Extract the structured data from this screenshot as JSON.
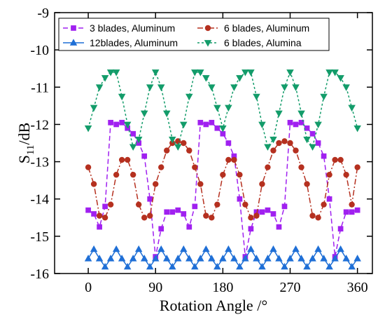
{
  "chart_data": {
    "type": "line",
    "xlabel": "Rotation Angle /°",
    "ylabel_main": "S",
    "ylabel_sub": "11",
    "ylabel_rest": "/dB",
    "xlim": [
      -45,
      380
    ],
    "ylim": [
      -16,
      -9
    ],
    "xticks": [
      0,
      90,
      180,
      270,
      360
    ],
    "yticks": [
      -16,
      -15,
      -14,
      -13,
      -12,
      -11,
      -10,
      -9
    ],
    "grid": false,
    "legend_position": "top",
    "series": [
      {
        "name": "3 blades, Aluminum",
        "color": "#a020f0",
        "marker": "square",
        "dash": "7,4",
        "x": [
          0,
          7.5,
          15,
          22.5,
          30,
          37.5,
          45,
          52.5,
          60,
          67.5,
          75,
          82.5,
          90,
          97.5,
          105,
          112.5,
          120,
          127.5,
          135,
          142.5,
          150,
          157.5,
          165,
          172.5,
          180,
          187.5,
          195,
          202.5,
          210,
          217.5,
          225,
          232.5,
          240,
          247.5,
          255,
          262.5,
          270,
          277.5,
          285,
          292.5,
          300,
          307.5,
          315,
          322.5,
          330,
          337.5,
          345,
          352.5,
          360
        ],
        "y": [
          -14.3,
          -14.4,
          -14.75,
          -14.2,
          -11.95,
          -12.0,
          -11.95,
          -12.1,
          -12.25,
          -12.5,
          -12.85,
          -14.0,
          -15.55,
          -14.8,
          -14.35,
          -14.35,
          -14.3,
          -14.4,
          -14.75,
          -14.2,
          -11.95,
          -12.0,
          -11.95,
          -12.1,
          -12.25,
          -12.5,
          -12.85,
          -14.0,
          -15.55,
          -14.8,
          -14.35,
          -14.35,
          -14.3,
          -14.4,
          -14.75,
          -14.2,
          -11.95,
          -12.0,
          -11.95,
          -12.1,
          -12.25,
          -12.5,
          -12.85,
          -14.0,
          -15.55,
          -14.8,
          -14.35,
          -14.35,
          -14.3
        ]
      },
      {
        "name": "6 blades, Aluminum",
        "color": "#b5301f",
        "marker": "circle",
        "dash": "8,3,2,3",
        "x": [
          0,
          7.5,
          15,
          22.5,
          30,
          37.5,
          45,
          52.5,
          60,
          67.5,
          75,
          82.5,
          90,
          97.5,
          105,
          112.5,
          120,
          127.5,
          135,
          142.5,
          150,
          157.5,
          165,
          172.5,
          180,
          187.5,
          195,
          202.5,
          210,
          217.5,
          225,
          232.5,
          240,
          247.5,
          255,
          262.5,
          270,
          277.5,
          285,
          292.5,
          300,
          307.5,
          315,
          322.5,
          330,
          337.5,
          345,
          352.5,
          360
        ],
        "y": [
          -13.15,
          -13.6,
          -14.45,
          -14.5,
          -14.15,
          -13.35,
          -12.95,
          -12.95,
          -13.35,
          -14.15,
          -14.5,
          -14.45,
          -13.6,
          -13.15,
          -12.7,
          -12.5,
          -12.45,
          -12.5,
          -12.7,
          -13.15,
          -13.6,
          -14.45,
          -14.5,
          -14.15,
          -13.35,
          -12.95,
          -12.95,
          -13.35,
          -14.15,
          -14.5,
          -14.45,
          -13.6,
          -13.15,
          -12.7,
          -12.5,
          -12.45,
          -12.5,
          -12.7,
          -13.15,
          -13.6,
          -14.45,
          -14.5,
          -14.15,
          -13.35,
          -12.95,
          -12.95,
          -13.35,
          -14.15,
          -13.15
        ]
      },
      {
        "name": "12blades, Aluminum",
        "color": "#1f6fd6",
        "marker": "triangle-up",
        "dash": "",
        "x": [
          0,
          7.5,
          15,
          22.5,
          30,
          37.5,
          45,
          52.5,
          60,
          67.5,
          75,
          82.5,
          90,
          97.5,
          105,
          112.5,
          120,
          127.5,
          135,
          142.5,
          150,
          157.5,
          165,
          172.5,
          180,
          187.5,
          195,
          202.5,
          210,
          217.5,
          225,
          232.5,
          240,
          247.5,
          255,
          262.5,
          270,
          277.5,
          285,
          292.5,
          300,
          307.5,
          315,
          322.5,
          330,
          337.5,
          345,
          352.5,
          360
        ],
        "y": [
          -15.6,
          -15.35,
          -15.6,
          -15.82,
          -15.6,
          -15.35,
          -15.6,
          -15.82,
          -15.6,
          -15.35,
          -15.6,
          -15.82,
          -15.6,
          -15.35,
          -15.6,
          -15.82,
          -15.6,
          -15.35,
          -15.6,
          -15.82,
          -15.6,
          -15.35,
          -15.6,
          -15.82,
          -15.6,
          -15.35,
          -15.6,
          -15.82,
          -15.6,
          -15.35,
          -15.6,
          -15.82,
          -15.6,
          -15.35,
          -15.6,
          -15.82,
          -15.6,
          -15.35,
          -15.6,
          -15.82,
          -15.6,
          -15.35,
          -15.6,
          -15.82,
          -15.6,
          -15.35,
          -15.6,
          -15.82,
          -15.6
        ]
      },
      {
        "name": "6 blades, Alumina",
        "color": "#139c6a",
        "marker": "triangle-down",
        "dash": "3,3",
        "x": [
          0,
          7.5,
          15,
          22.5,
          30,
          37.5,
          45,
          52.5,
          60,
          67.5,
          75,
          82.5,
          90,
          97.5,
          105,
          112.5,
          120,
          127.5,
          135,
          142.5,
          150,
          157.5,
          165,
          172.5,
          180,
          187.5,
          195,
          202.5,
          210,
          217.5,
          225,
          232.5,
          240,
          247.5,
          255,
          262.5,
          270,
          277.5,
          285,
          292.5,
          300,
          307.5,
          315,
          322.5,
          330,
          337.5,
          345,
          352.5,
          360
        ],
        "y": [
          -12.1,
          -11.55,
          -11.0,
          -10.75,
          -10.6,
          -10.6,
          -11.25,
          -12.0,
          -12.6,
          -12.4,
          -11.7,
          -11.0,
          -10.6,
          -11.0,
          -11.7,
          -12.4,
          -12.6,
          -12.0,
          -11.25,
          -10.6,
          -10.6,
          -10.75,
          -11.0,
          -11.55,
          -12.1,
          -11.55,
          -11.0,
          -10.75,
          -10.6,
          -10.6,
          -11.25,
          -12.0,
          -12.6,
          -12.4,
          -11.7,
          -11.0,
          -10.6,
          -11.0,
          -11.7,
          -12.4,
          -12.6,
          -12.0,
          -11.25,
          -10.6,
          -10.6,
          -10.75,
          -11.0,
          -11.55,
          -12.1
        ]
      }
    ]
  }
}
